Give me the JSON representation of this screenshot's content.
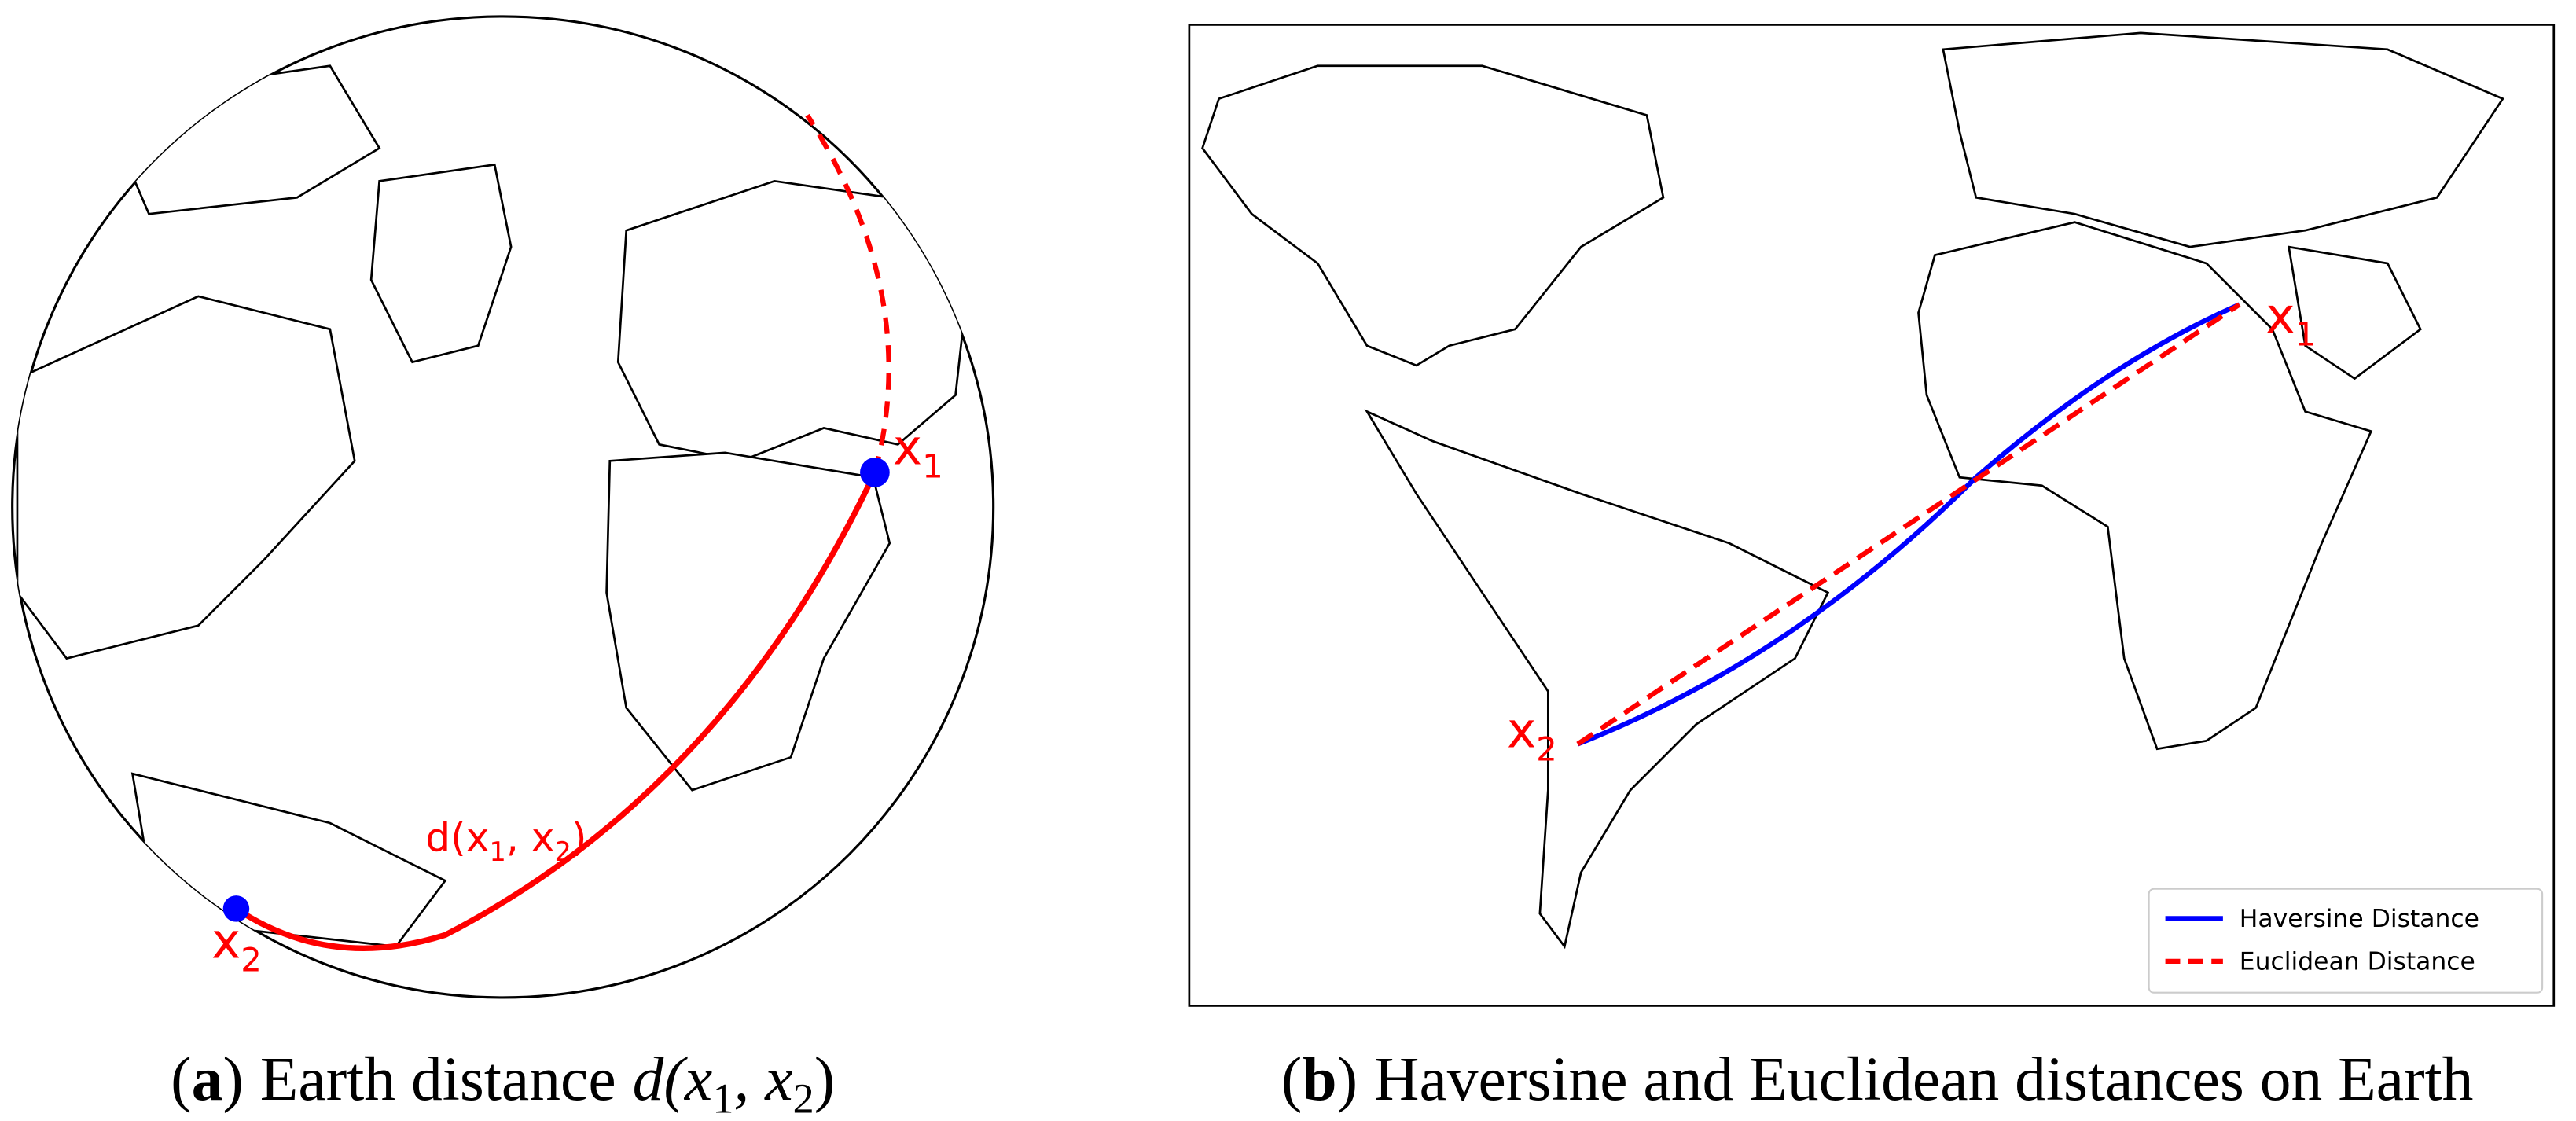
{
  "panel_a": {
    "point_labels": [
      {
        "base": "x",
        "sub": "1"
      },
      {
        "base": "x",
        "sub": "2"
      }
    ],
    "distance_label": [
      "d(x",
      "1",
      ", x",
      "2",
      ")"
    ],
    "caption": {
      "open": "(",
      "label": "a",
      "close": ")",
      "text": "Earth distance",
      "math": [
        "d(x",
        "1",
        ", x",
        "2",
        ")"
      ]
    }
  },
  "panel_b": {
    "point_labels": [
      {
        "base": "x",
        "sub": "1"
      },
      {
        "base": "x",
        "sub": "2"
      }
    ],
    "legend": [
      "Haversine Distance",
      "Euclidean Distance"
    ],
    "caption": {
      "open": "(",
      "label": "b",
      "close": ")",
      "text": "Haversine and Euclidean distances on Earth"
    }
  }
}
